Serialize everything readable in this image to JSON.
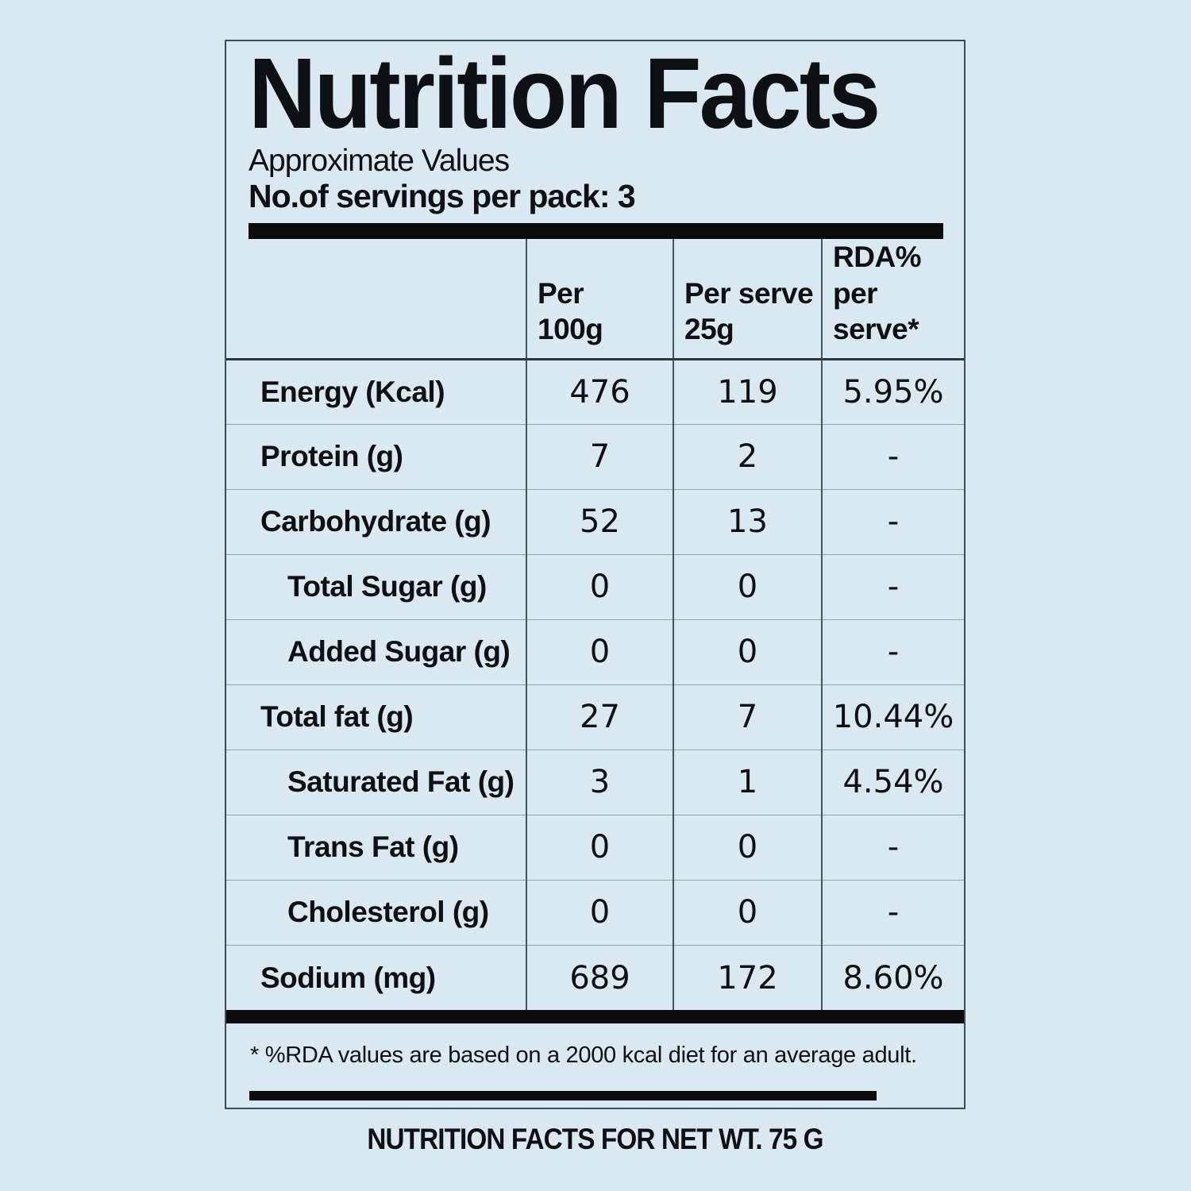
{
  "label": {
    "title": "Nutrition Facts",
    "subtitle": "Approximate Values",
    "servings_line": "No.of servings per pack: 3",
    "footnote": "* %RDA values are based on a 2000 kcal diet for an average adult.",
    "caption": "NUTRITION FACTS FOR NET WT. 75 G"
  },
  "table": {
    "header": {
      "per100": {
        "l1": "Per",
        "l2": "100g"
      },
      "perServe": {
        "l1": "Per serve",
        "l2": "25g"
      },
      "rda": {
        "l1": "RDA% per",
        "l2": "serve*"
      }
    },
    "rows": [
      {
        "name": "Energy (Kcal)",
        "per100": "476",
        "perServe": "119",
        "rda": "5.95%"
      },
      {
        "name": "Protein (g)",
        "per100": "7",
        "perServe": "2",
        "rda": "-"
      },
      {
        "name": "Carbohydrate (g)",
        "per100": "52",
        "perServe": "13",
        "rda": "-"
      },
      {
        "name": "Total Sugar (g)",
        "per100": "0",
        "perServe": "0",
        "rda": "-"
      },
      {
        "name": "Added Sugar (g)",
        "per100": "0",
        "perServe": "0",
        "rda": "-"
      },
      {
        "name": "Total fat (g)",
        "per100": "27",
        "perServe": "7",
        "rda": "10.44%"
      },
      {
        "name": "Saturated Fat (g)",
        "per100": "3",
        "perServe": "1",
        "rda": "4.54%"
      },
      {
        "name": "Trans Fat (g)",
        "per100": "0",
        "perServe": "0",
        "rda": "-"
      },
      {
        "name": "Cholesterol (g)",
        "per100": "0",
        "perServe": "0",
        "rda": "-"
      },
      {
        "name": "Sodium (mg)",
        "per100": "689",
        "perServe": "172",
        "rda": "8.60%"
      }
    ]
  },
  "colors": {
    "background": "#dae8f1",
    "ink": "#0d1115",
    "bar": "#0b0b0b"
  }
}
